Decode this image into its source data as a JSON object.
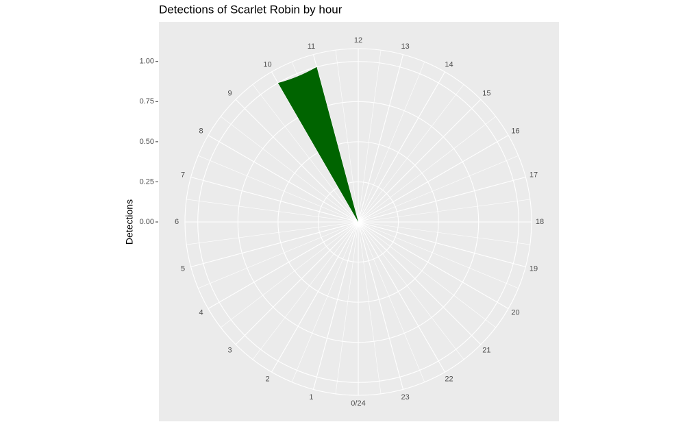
{
  "chart_data": {
    "type": "polar-bar",
    "title": "Detections of Scarlet Robin by hour",
    "y_label": "Detections",
    "x": [
      10
    ],
    "values": [
      1
    ],
    "color": "#006400",
    "xlim": [
      0,
      24
    ],
    "xticks": [
      {
        "value": 0,
        "label": "0/24"
      },
      1,
      2,
      3,
      4,
      5,
      6,
      7,
      8,
      9,
      10,
      11,
      12,
      13,
      14,
      15,
      16,
      17,
      18,
      19,
      20,
      21,
      22,
      23
    ],
    "ylim": [
      0,
      1.08
    ],
    "yticks": [
      {
        "value": 0,
        "label": "0.00"
      },
      {
        "value": 0.25,
        "label": "0.25"
      },
      {
        "value": 0.5,
        "label": "0.50"
      },
      {
        "value": 0.75,
        "label": "0.75"
      },
      {
        "value": 1,
        "label": "1.00"
      }
    ],
    "grid": true
  }
}
